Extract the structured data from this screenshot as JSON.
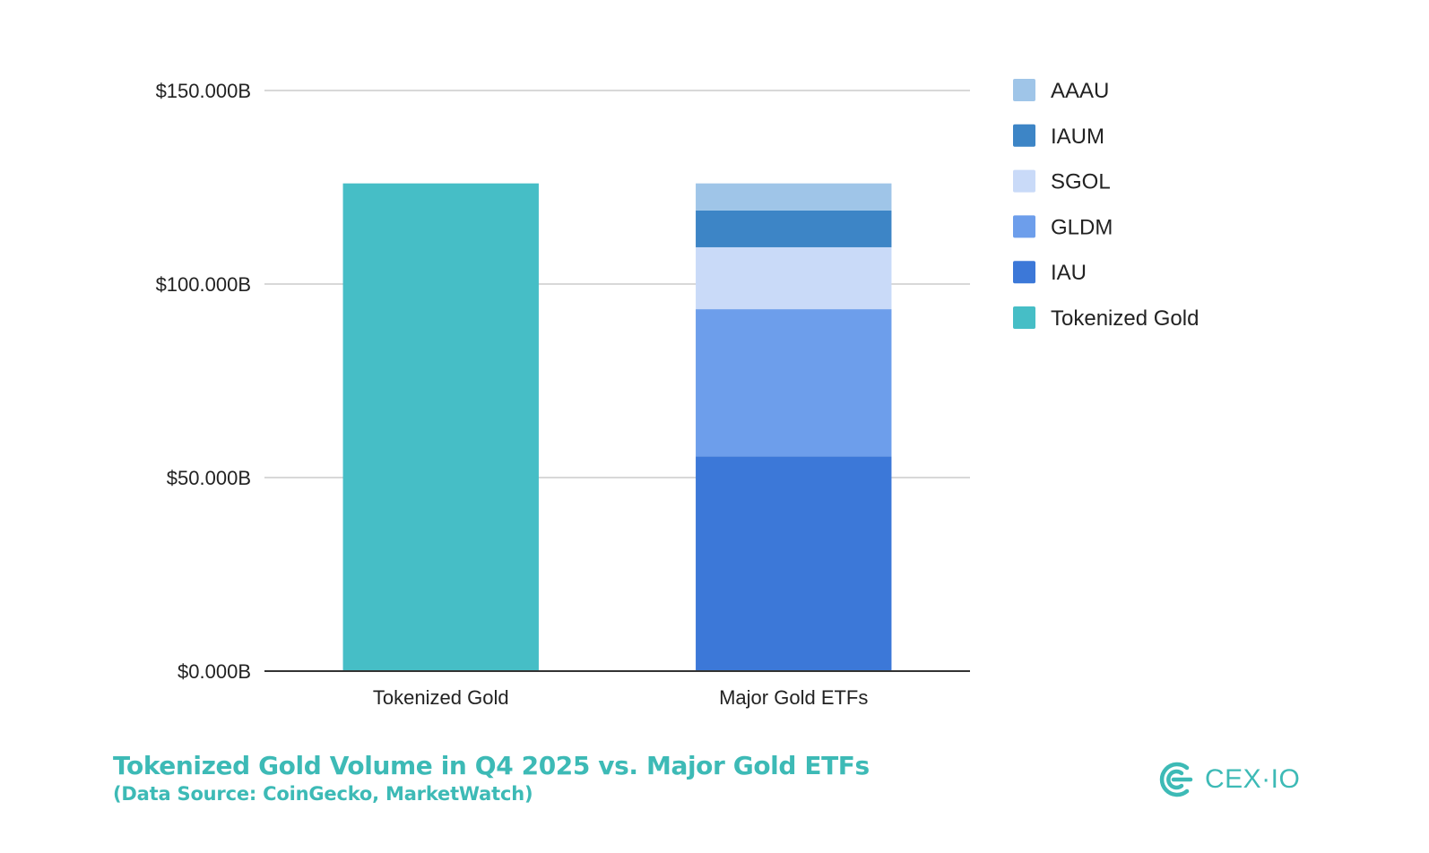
{
  "chart_data": {
    "type": "bar",
    "stacked": true,
    "title": "Tokenized Gold Volume in Q4 2025 vs. Major Gold ETFs",
    "subtitle": "(Data Source: CoinGecko, MarketWatch)",
    "xlabel": "",
    "ylabel": "",
    "categories": [
      "Tokenized Gold",
      "Major Gold ETFs"
    ],
    "ylim": [
      0,
      150
    ],
    "yticks": [
      {
        "value": 0,
        "label": "$0.000B"
      },
      {
        "value": 50,
        "label": "$50.000B"
      },
      {
        "value": 100,
        "label": "$100.000B"
      },
      {
        "value": 150,
        "label": "$150.000B"
      }
    ],
    "grid": true,
    "legend_position": "right",
    "series": [
      {
        "name": "Tokenized Gold",
        "color": "#46bec6",
        "values": [
          126,
          0
        ]
      },
      {
        "name": "IAU",
        "color": "#3c78d8",
        "values": [
          0,
          55.5
        ]
      },
      {
        "name": "GLDM",
        "color": "#6d9eeb",
        "values": [
          0,
          38
        ]
      },
      {
        "name": "SGOL",
        "color": "#c9daf8",
        "values": [
          0,
          16
        ]
      },
      {
        "name": "IAUM",
        "color": "#3d85c6",
        "values": [
          0,
          9.5
        ]
      },
      {
        "name": "AAAU",
        "color": "#9fc5e8",
        "values": [
          0,
          7
        ]
      }
    ],
    "legend_order": [
      "AAAU",
      "IAUM",
      "SGOL",
      "GLDM",
      "IAU",
      "Tokenized Gold"
    ]
  },
  "caption": {
    "title": "Tokenized Gold Volume in Q4 2025 vs. Major Gold ETFs",
    "source": "(Data Source: CoinGecko, MarketWatch)"
  },
  "brand": {
    "name": "CEX·IO",
    "icon": "cex-io-logo-icon",
    "color": "#3dbab6"
  }
}
